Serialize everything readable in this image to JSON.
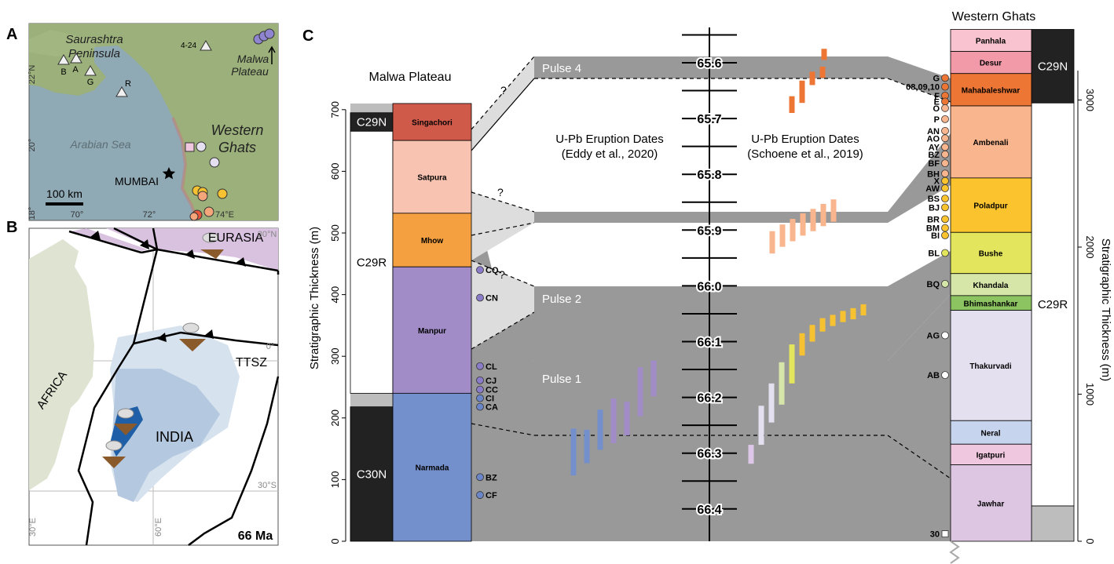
{
  "panels": {
    "a": "A",
    "b": "B",
    "c": "C"
  },
  "map_a": {
    "labels": {
      "saurashtra": [
        "Saurashtra",
        "Peninsula"
      ],
      "malwa": [
        "Malwa",
        "Plateau"
      ],
      "western_ghats": [
        "Western",
        "Ghats"
      ],
      "arabian_sea": "Arabian Sea",
      "mumbai": "MUMBAI",
      "scale": "100 km",
      "site_4_24": "4-24"
    },
    "lat_ticks": [
      "22°N",
      "20°",
      "18°"
    ],
    "lon_ticks": [
      "70°",
      "72°",
      "74°E"
    ],
    "triangle_sites": [
      "B",
      "A",
      "G",
      "R"
    ],
    "colors": {
      "land": "#9bb07a",
      "sea": "#8fa9b5",
      "purple_site": "#8e84d0",
      "orange_site": "#f4a57a",
      "red_site": "#e8553a",
      "yellow_site": "#f6c232"
    }
  },
  "map_b": {
    "labels": {
      "eurasia": "EURASIA",
      "ttsz": "TTSZ",
      "africa": "AFRICA",
      "india": "INDIA",
      "age": "66 Ma"
    },
    "grid_labels": [
      "30°N",
      "0°",
      "30°S",
      "30°E",
      "60°E"
    ],
    "colors": {
      "eurasia": "#d9c2e0",
      "africa": "#dfe4d2",
      "india": "#b4c8df",
      "india_light": "#d6e2ee",
      "traps": "#1e5fa8"
    }
  },
  "chart_c": {
    "malwa_title": "Malwa Plateau",
    "wg_title": "Western Ghats",
    "left_axis_label": "Stratigraphic Thickness (m)",
    "right_axis_label": "Stratigraphic Thickness (m)",
    "left_ticks": [
      "0",
      "100",
      "200",
      "300",
      "400",
      "500",
      "600",
      "700"
    ],
    "right_ticks": [
      "0",
      "1000",
      "2000",
      "3000"
    ],
    "time_ticks": [
      "65.6",
      "65.7",
      "65.8",
      "65.9",
      "66.0",
      "66.1",
      "66.2",
      "66.3",
      "66.4"
    ],
    "eddy_label": [
      "U-Pb Eruption Dates",
      "(Eddy et al., 2020)"
    ],
    "schoene_label": [
      "U-Pb Eruption Dates",
      "(Schoene et al., 2019)"
    ],
    "pulses": [
      "Pulse 4",
      "Pulse 3",
      "Pulse 2",
      "Pulse 1"
    ],
    "question_marks": [
      "?",
      "?",
      "?"
    ],
    "malwa_polarity": [
      {
        "name": "C29N",
        "from": 665,
        "to": 695,
        "color": "#222222"
      },
      {
        "name": "C29R",
        "from": 240,
        "to": 665,
        "color": "#ffffff"
      },
      {
        "name": "C30N",
        "from": 0,
        "to": 218,
        "color": "#222222"
      }
    ],
    "malwa_formations": [
      {
        "name": "Singachori",
        "from": 650,
        "to": 710,
        "color": "#cf5a4a"
      },
      {
        "name": "Satpura",
        "from": 532,
        "to": 650,
        "color": "#f8c3b0"
      },
      {
        "name": "Mhow",
        "from": 445,
        "to": 532,
        "color": "#f5a040"
      },
      {
        "name": "Manpur",
        "from": 240,
        "to": 445,
        "color": "#a18cc8"
      },
      {
        "name": "Narmada",
        "from": 0,
        "to": 240,
        "color": "#7490cc"
      }
    ],
    "malwa_samples": [
      {
        "code": "CQ",
        "m": 440,
        "color": "#8a7cc8"
      },
      {
        "code": "CN",
        "m": 395,
        "color": "#8a7cc8"
      },
      {
        "code": "CL",
        "m": 284,
        "color": "#8a7cc8"
      },
      {
        "code": "CJ",
        "m": 261,
        "color": "#8a7cc8"
      },
      {
        "code": "CC",
        "m": 246,
        "color": "#8a7cc8"
      },
      {
        "code": "CI",
        "m": 232,
        "color": "#6a86c8"
      },
      {
        "code": "CA",
        "m": 218,
        "color": "#6a86c8"
      },
      {
        "code": "BZ",
        "m": 104,
        "color": "#6a86c8"
      },
      {
        "code": "CF",
        "m": 75,
        "color": "#6a86c8"
      }
    ],
    "wg_polarity": [
      {
        "name": "C29N",
        "from": 2980,
        "to": 3480,
        "color": "#222222"
      },
      {
        "name": "C29R",
        "from": 240,
        "to": 2980,
        "color": "#ffffff"
      },
      {
        "name": "",
        "from": 0,
        "to": 240,
        "color": "#bdbdbd"
      }
    ],
    "wg_formations": [
      {
        "name": "Panhala",
        "from": 3330,
        "to": 3480,
        "color": "#f9c3cf"
      },
      {
        "name": "Desur",
        "from": 3180,
        "to": 3330,
        "color": "#f39aa9"
      },
      {
        "name": "Mahabaleshwar",
        "from": 2960,
        "to": 3180,
        "color": "#ee7634"
      },
      {
        "name": "Ambenali",
        "from": 2470,
        "to": 2960,
        "color": "#f9b58d"
      },
      {
        "name": "Poladpur",
        "from": 2100,
        "to": 2470,
        "color": "#fbc42e"
      },
      {
        "name": "Bushe",
        "from": 1820,
        "to": 2100,
        "color": "#e3e55c"
      },
      {
        "name": "Khandala",
        "from": 1670,
        "to": 1820,
        "color": "#d6e6a9"
      },
      {
        "name": "Bhimashankar",
        "from": 1570,
        "to": 1670,
        "color": "#8cc461"
      },
      {
        "name": "Thakurvadi",
        "from": 820,
        "to": 1570,
        "color": "#e4e0f0"
      },
      {
        "name": "Neral",
        "from": 660,
        "to": 820,
        "color": "#c7d4ed"
      },
      {
        "name": "Igatpuri",
        "from": 520,
        "to": 660,
        "color": "#efc7df"
      },
      {
        "name": "Jawhar",
        "from": 0,
        "to": 520,
        "color": "#dcc6e2"
      }
    ],
    "wg_samples": [
      {
        "code": "G",
        "m": 3150,
        "color": "#ee7634",
        "shape": "circle"
      },
      {
        "code": "08,09,10",
        "m": 3090,
        "color": "#ee7634",
        "shape": "circle"
      },
      {
        "code": "F",
        "m": 3030,
        "color": "#ee7634",
        "shape": "circle"
      },
      {
        "code": "E",
        "m": 2990,
        "color": "#ee7634",
        "shape": "circle"
      },
      {
        "code": "O",
        "m": 2945,
        "color": "#f9b58d",
        "shape": "circle"
      },
      {
        "code": "P",
        "m": 2870,
        "color": "#f9b58d",
        "shape": "circle"
      },
      {
        "code": "AN",
        "m": 2790,
        "color": "#f9b58d",
        "shape": "circle"
      },
      {
        "code": "AO",
        "m": 2740,
        "color": "#f9b58d",
        "shape": "circle"
      },
      {
        "code": "AY",
        "m": 2680,
        "color": "#f9b58d",
        "shape": "circle"
      },
      {
        "code": "BZ",
        "m": 2630,
        "color": "#f9b58d",
        "shape": "circle"
      },
      {
        "code": "BF",
        "m": 2570,
        "color": "#f9b58d",
        "shape": "circle"
      },
      {
        "code": "BH",
        "m": 2500,
        "color": "#f9b58d",
        "shape": "circle"
      },
      {
        "code": "X",
        "m": 2450,
        "color": "#fbc42e",
        "shape": "circle"
      },
      {
        "code": "AW",
        "m": 2400,
        "color": "#fbc42e",
        "shape": "circle"
      },
      {
        "code": "BS",
        "m": 2330,
        "color": "#fbc42e",
        "shape": "circle"
      },
      {
        "code": "BJ",
        "m": 2270,
        "color": "#fbc42e",
        "shape": "circle"
      },
      {
        "code": "BR",
        "m": 2190,
        "color": "#fbc42e",
        "shape": "circle"
      },
      {
        "code": "BM",
        "m": 2130,
        "color": "#fbc42e",
        "shape": "circle"
      },
      {
        "code": "BI",
        "m": 2080,
        "color": "#fbc42e",
        "shape": "circle"
      },
      {
        "code": "BL",
        "m": 1960,
        "color": "#e3e55c",
        "shape": "circle"
      },
      {
        "code": "BQ",
        "m": 1750,
        "color": "#d6e6a9",
        "shape": "circle"
      },
      {
        "code": "AG",
        "m": 1400,
        "color": "#ffffff",
        "shape": "circle"
      },
      {
        "code": "AB",
        "m": 1130,
        "color": "#ffffff",
        "shape": "circle"
      },
      {
        "code": "30",
        "m": 50,
        "color": "#ffffff",
        "shape": "square"
      }
    ],
    "eddy_dates": [
      {
        "mid": 66.298,
        "err": 0.042,
        "color": "#7490cc"
      },
      {
        "mid": 66.288,
        "err": 0.03,
        "color": "#7490cc"
      },
      {
        "mid": 66.258,
        "err": 0.036,
        "color": "#7490cc"
      },
      {
        "mid": 66.242,
        "err": 0.04,
        "color": "#a18cc8"
      },
      {
        "mid": 66.238,
        "err": 0.03,
        "color": "#a18cc8"
      },
      {
        "mid": 66.19,
        "err": 0.044,
        "color": "#a18cc8"
      },
      {
        "mid": 66.166,
        "err": 0.032,
        "color": "#a18cc8"
      },
      {
        "mid": 65.675,
        "err": 0.015,
        "color": "#ee7634"
      },
      {
        "mid": 65.652,
        "err": 0.02,
        "color": "#ee7634"
      },
      {
        "mid": 65.628,
        "err": 0.012,
        "color": "#ee7634"
      },
      {
        "mid": 65.617,
        "err": 0.01,
        "color": "#ee7634"
      },
      {
        "mid": 65.585,
        "err": 0.01,
        "color": "#ee7634"
      }
    ],
    "schoene_dates": [
      {
        "mid": 66.302,
        "err": 0.017,
        "color": "#ddc6e8"
      },
      {
        "mid": 66.25,
        "err": 0.035,
        "color": "#e4e0f0"
      },
      {
        "mid": 66.21,
        "err": 0.035,
        "color": "#e4e0f0"
      },
      {
        "mid": 66.175,
        "err": 0.038,
        "color": "#d6e6a9"
      },
      {
        "mid": 66.14,
        "err": 0.035,
        "color": "#e3e55c"
      },
      {
        "mid": 66.105,
        "err": 0.02,
        "color": "#f6c232"
      },
      {
        "mid": 66.085,
        "err": 0.015,
        "color": "#f6c232"
      },
      {
        "mid": 66.07,
        "err": 0.012,
        "color": "#f6c232"
      },
      {
        "mid": 66.062,
        "err": 0.01,
        "color": "#f6c232"
      },
      {
        "mid": 66.055,
        "err": 0.01,
        "color": "#f6c232"
      },
      {
        "mid": 66.05,
        "err": 0.01,
        "color": "#f6c232"
      },
      {
        "mid": 66.043,
        "err": 0.01,
        "color": "#f6c232"
      },
      {
        "mid": 65.922,
        "err": 0.02,
        "color": "#f9b58d"
      },
      {
        "mid": 65.91,
        "err": 0.02,
        "color": "#f9b58d"
      },
      {
        "mid": 65.9,
        "err": 0.02,
        "color": "#f9b58d"
      },
      {
        "mid": 65.89,
        "err": 0.02,
        "color": "#f9b58d"
      },
      {
        "mid": 65.882,
        "err": 0.02,
        "color": "#f9b58d"
      },
      {
        "mid": 65.873,
        "err": 0.02,
        "color": "#f9b58d"
      },
      {
        "mid": 65.865,
        "err": 0.02,
        "color": "#f9b58d"
      }
    ]
  }
}
